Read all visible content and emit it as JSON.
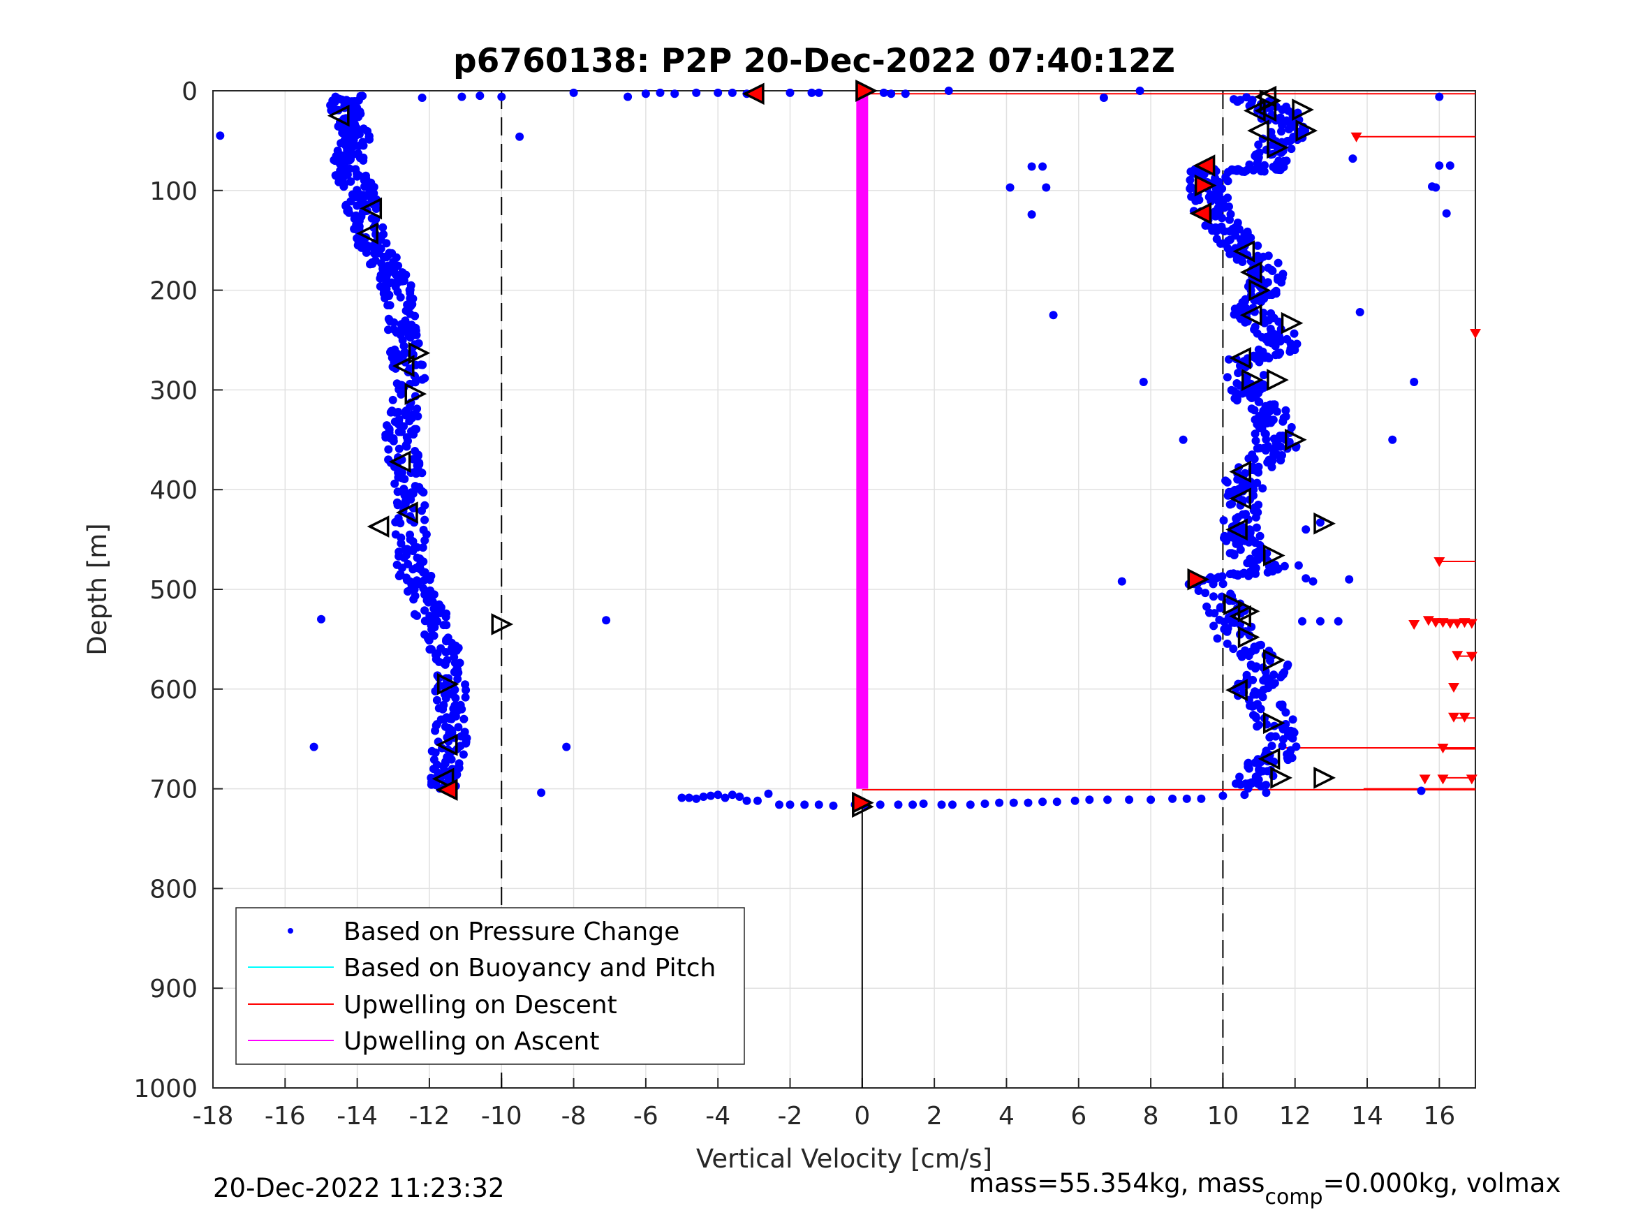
{
  "chart_data": {
    "type": "scatter",
    "title": "p6760138: P2P 20-Dec-2022 07:40:12Z",
    "xlabel": "Vertical Velocity [cm/s]",
    "ylabel": "Depth [m]",
    "xlim": [
      -18,
      17
    ],
    "ylim": [
      0,
      1000
    ],
    "y_reversed": true,
    "grid": true,
    "xticks": [
      "-18",
      "-16",
      "-14",
      "-12",
      "-10",
      "-8",
      "-6",
      "-4",
      "-2",
      "0",
      "2",
      "4",
      "6",
      "8",
      "10",
      "12",
      "14",
      "16"
    ],
    "yticks": [
      "0",
      "100",
      "200",
      "300",
      "400",
      "500",
      "600",
      "700",
      "800",
      "900",
      "1000"
    ],
    "reference_lines_x": [
      -10,
      10
    ],
    "zero_line_depth_range": [
      715,
      1000
    ],
    "legend_position": "bottom-left",
    "legend": [
      {
        "name": "Based on Pressure Change",
        "color": "#0000ff",
        "marker": "dot"
      },
      {
        "name": "Based on Buoyancy and Pitch",
        "color": "#00ffff",
        "marker": "line"
      },
      {
        "name": "Upwelling on Descent",
        "color": "#ff0000",
        "marker": "line"
      },
      {
        "name": "Upwelling on Ascent",
        "color": "#ff00ff",
        "marker": "line"
      }
    ],
    "descent_trend": [
      [
        -14.3,
        5
      ],
      [
        -14.4,
        20
      ],
      [
        -14.1,
        40
      ],
      [
        -14.1,
        60
      ],
      [
        -14.3,
        80
      ],
      [
        -13.9,
        100
      ],
      [
        -13.9,
        120
      ],
      [
        -13.6,
        150
      ],
      [
        -13.3,
        170
      ],
      [
        -13.0,
        190
      ],
      [
        -12.8,
        210
      ],
      [
        -12.8,
        240
      ],
      [
        -12.6,
        270
      ],
      [
        -12.5,
        300
      ],
      [
        -12.8,
        340
      ],
      [
        -12.7,
        370
      ],
      [
        -12.5,
        400
      ],
      [
        -12.5,
        430
      ],
      [
        -12.5,
        470
      ],
      [
        -12.3,
        500
      ],
      [
        -11.9,
        530
      ],
      [
        -11.6,
        560
      ],
      [
        -11.4,
        590
      ],
      [
        -11.4,
        620
      ],
      [
        -11.4,
        650
      ],
      [
        -11.6,
        680
      ],
      [
        -11.5,
        700
      ]
    ],
    "ascent_trend": [
      [
        10.5,
        5
      ],
      [
        11.5,
        20
      ],
      [
        11.8,
        40
      ],
      [
        11.4,
        60
      ],
      [
        11.2,
        80
      ],
      [
        9.6,
        80
      ],
      [
        9.6,
        100
      ],
      [
        9.7,
        120
      ],
      [
        10.2,
        140
      ],
      [
        10.6,
        160
      ],
      [
        11.2,
        180
      ],
      [
        11.0,
        200
      ],
      [
        10.7,
        220
      ],
      [
        11.4,
        240
      ],
      [
        11.6,
        260
      ],
      [
        10.6,
        270
      ],
      [
        10.6,
        300
      ],
      [
        11.2,
        320
      ],
      [
        11.4,
        340
      ],
      [
        11.5,
        360
      ],
      [
        10.6,
        390
      ],
      [
        10.6,
        410
      ],
      [
        10.4,
        440
      ],
      [
        10.6,
        460
      ],
      [
        11.3,
        480
      ],
      [
        9.5,
        490
      ],
      [
        10.1,
        520
      ],
      [
        10.4,
        550
      ],
      [
        11.4,
        580
      ],
      [
        10.7,
        600
      ],
      [
        11.4,
        630
      ],
      [
        11.7,
        660
      ],
      [
        11.0,
        680
      ],
      [
        10.8,
        700
      ]
    ],
    "descent_bottom_points": [
      [
        -5.0,
        709
      ],
      [
        -4.8,
        709
      ],
      [
        -4.6,
        710
      ],
      [
        -4.4,
        708
      ],
      [
        -4.2,
        707
      ],
      [
        -4.0,
        706
      ],
      [
        -3.8,
        709
      ],
      [
        -3.6,
        706
      ],
      [
        -3.4,
        708
      ],
      [
        -3.2,
        712
      ],
      [
        -2.9,
        712
      ],
      [
        -2.6,
        705
      ],
      [
        -2.3,
        716
      ],
      [
        -2.0,
        716
      ],
      [
        -1.6,
        716
      ],
      [
        -1.2,
        716
      ],
      [
        -0.8,
        717
      ],
      [
        -0.2,
        716
      ],
      [
        0.1,
        717
      ],
      [
        0.5,
        716
      ]
    ],
    "ascent_bottom_points": [
      [
        1.0,
        716
      ],
      [
        1.4,
        716
      ],
      [
        1.7,
        715
      ],
      [
        2.2,
        716
      ],
      [
        2.5,
        716
      ],
      [
        3.0,
        716
      ],
      [
        3.4,
        715
      ],
      [
        3.8,
        714
      ],
      [
        4.2,
        714
      ],
      [
        4.6,
        714
      ],
      [
        5.0,
        713
      ],
      [
        5.4,
        713
      ],
      [
        5.9,
        712
      ],
      [
        6.3,
        711
      ],
      [
        6.8,
        711
      ],
      [
        7.4,
        711
      ],
      [
        8.0,
        711
      ],
      [
        8.6,
        710
      ],
      [
        9.0,
        710
      ],
      [
        9.4,
        710
      ],
      [
        10.0,
        707
      ],
      [
        10.6,
        706
      ],
      [
        11.2,
        704
      ]
    ],
    "surface_points": [
      [
        -12.2,
        7
      ],
      [
        -11.1,
        6
      ],
      [
        -10.6,
        5
      ],
      [
        -10.0,
        6
      ],
      [
        -8.0,
        2
      ],
      [
        -6.5,
        6
      ],
      [
        -6.0,
        3
      ],
      [
        -5.6,
        2
      ],
      [
        -5.2,
        3
      ],
      [
        -4.6,
        2
      ],
      [
        -4.0,
        2
      ],
      [
        -3.6,
        2
      ],
      [
        -3.2,
        3
      ],
      [
        -2.0,
        2
      ],
      [
        -1.4,
        2
      ],
      [
        -1.2,
        2
      ],
      [
        0.6,
        2
      ],
      [
        0.8,
        3
      ],
      [
        1.2,
        3
      ],
      [
        2.4,
        0
      ],
      [
        6.7,
        7
      ],
      [
        7.7,
        0
      ],
      [
        16.0,
        6
      ]
    ],
    "outlier_points": [
      [
        -17.8,
        45
      ],
      [
        -9.5,
        46
      ],
      [
        -15.0,
        530
      ],
      [
        -7.1,
        531
      ],
      [
        -15.2,
        658
      ],
      [
        -8.2,
        658
      ],
      [
        -8.9,
        704
      ],
      [
        4.1,
        97
      ],
      [
        4.7,
        76
      ],
      [
        5.0,
        76
      ],
      [
        5.1,
        97
      ],
      [
        4.7,
        124
      ],
      [
        5.3,
        225
      ],
      [
        7.8,
        292
      ],
      [
        8.9,
        350
      ],
      [
        7.2,
        492
      ],
      [
        13.8,
        222
      ],
      [
        15.3,
        292
      ],
      [
        14.7,
        350
      ],
      [
        13.5,
        490
      ],
      [
        16.0,
        75
      ],
      [
        16.3,
        75
      ],
      [
        15.9,
        97
      ],
      [
        15.8,
        96
      ],
      [
        16.2,
        123
      ],
      [
        12.7,
        433
      ],
      [
        12.2,
        532
      ],
      [
        12.7,
        532
      ],
      [
        13.2,
        532
      ],
      [
        12.3,
        489
      ],
      [
        12.5,
        492
      ],
      [
        12.1,
        476
      ],
      [
        12.3,
        440
      ],
      [
        15.5,
        702
      ],
      [
        13.6,
        68
      ]
    ],
    "triangles_right": [
      [
        -10.0,
        535
      ],
      [
        0.1,
        0
      ],
      [
        0.0,
        718
      ],
      [
        11.3,
        10
      ],
      [
        12.2,
        19
      ],
      [
        12.3,
        40
      ],
      [
        11.5,
        57
      ],
      [
        11.0,
        200
      ],
      [
        11.9,
        233
      ],
      [
        10.8,
        290
      ],
      [
        11.5,
        290
      ],
      [
        12.0,
        350
      ],
      [
        12.8,
        434
      ],
      [
        11.4,
        466
      ],
      [
        10.3,
        515
      ],
      [
        10.7,
        522
      ],
      [
        10.7,
        548
      ],
      [
        11.4,
        571
      ],
      [
        11.4,
        634
      ],
      [
        11.6,
        689
      ],
      [
        12.8,
        689
      ],
      [
        -12.3,
        263
      ],
      [
        -12.4,
        304
      ],
      [
        -11.5,
        595
      ]
    ],
    "triangles_left": [
      [
        -14.5,
        25
      ],
      [
        -13.6,
        118
      ],
      [
        -13.7,
        143
      ],
      [
        -12.8,
        372
      ],
      [
        -12.6,
        423
      ],
      [
        -13.4,
        437
      ],
      [
        -12.7,
        276
      ],
      [
        -11.5,
        656
      ],
      [
        -11.6,
        690
      ],
      [
        11.0,
        40
      ],
      [
        10.6,
        161
      ],
      [
        10.8,
        182
      ],
      [
        10.8,
        225
      ],
      [
        10.5,
        268
      ],
      [
        10.5,
        382
      ],
      [
        10.5,
        409
      ],
      [
        10.4,
        440
      ],
      [
        10.5,
        527
      ],
      [
        10.4,
        601
      ],
      [
        11.3,
        670
      ],
      [
        11.2,
        6
      ],
      [
        10.9,
        20
      ],
      [
        11.2,
        20
      ]
    ],
    "red_markers": [
      [
        -3.0,
        3
      ],
      [
        0.1,
        0
      ],
      [
        9.5,
        75
      ],
      [
        9.5,
        95
      ],
      [
        9.4,
        123
      ],
      [
        9.3,
        490
      ],
      [
        -11.5,
        701
      ],
      [
        0.0,
        714
      ]
    ],
    "upwelling_ascent": {
      "x": 0,
      "depth_range": [
        0,
        700
      ],
      "color": "#ff00ff"
    },
    "upwelling_descent_lines": [
      [
        0,
        3,
        17
      ],
      [
        0,
        701,
        17
      ],
      [
        13.7,
        46,
        17
      ],
      [
        13.9,
        700,
        17
      ],
      [
        11.7,
        659,
        17
      ],
      [
        16.0,
        472,
        17
      ],
      [
        15.9,
        533,
        17
      ],
      [
        16.5,
        567,
        17
      ],
      [
        16.4,
        629,
        17
      ],
      [
        16.1,
        660,
        17
      ],
      [
        16.2,
        689,
        17
      ]
    ],
    "upwelling_descent_points": [
      [
        17.0,
        243
      ],
      [
        16.0,
        472
      ],
      [
        13.7,
        46
      ],
      [
        15.3,
        535
      ],
      [
        15.7,
        531
      ],
      [
        15.9,
        533
      ],
      [
        16.1,
        533
      ],
      [
        16.3,
        534
      ],
      [
        16.5,
        534
      ],
      [
        16.7,
        533
      ],
      [
        16.9,
        534
      ],
      [
        16.5,
        566
      ],
      [
        16.9,
        567
      ],
      [
        16.4,
        628
      ],
      [
        16.7,
        628
      ],
      [
        16.4,
        598
      ],
      [
        16.1,
        659
      ],
      [
        15.6,
        690
      ],
      [
        16.1,
        690
      ],
      [
        16.9,
        690
      ]
    ]
  },
  "footer": {
    "left": "20-Dec-2022 11:23:32",
    "right_prefix": "mass=55.354kg, mass",
    "right_sub": "comp",
    "right_suffix": "=0.000kg, volmax"
  }
}
